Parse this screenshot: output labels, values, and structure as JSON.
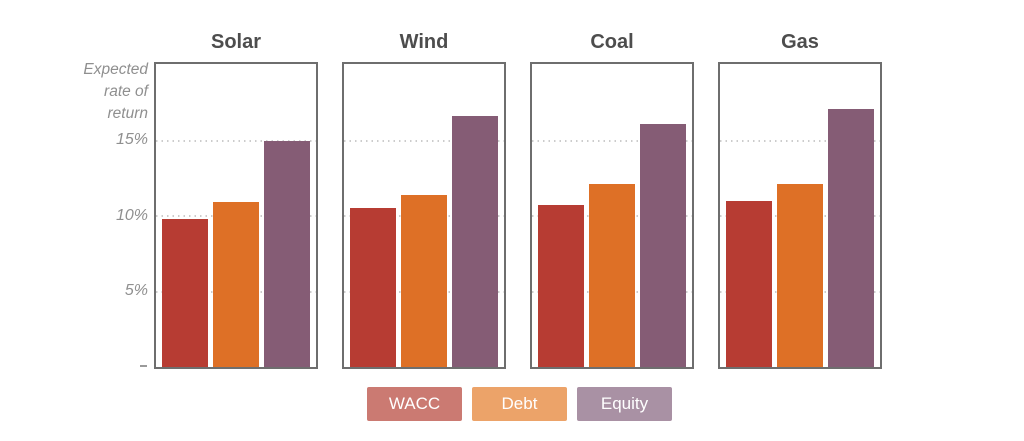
{
  "chart_data": {
    "type": "bar",
    "title": "",
    "categories": [
      "Solar",
      "Wind",
      "Coal",
      "Gas"
    ],
    "series": [
      {
        "name": "WACC",
        "color": "#b73c33",
        "values": [
          9.8,
          10.5,
          10.7,
          11.0
        ]
      },
      {
        "name": "Debt",
        "color": "#de7026",
        "values": [
          10.9,
          11.4,
          12.1,
          12.1
        ]
      },
      {
        "name": "Equity",
        "color": "#855c75",
        "values": [
          15.0,
          16.6,
          16.1,
          17.1
        ]
      }
    ],
    "xlabel": "",
    "ylabel": "Expected rate of return",
    "ylim": [
      0,
      20
    ],
    "y_ticks": [
      {
        "value": 15,
        "label": "15%"
      },
      {
        "value": 10,
        "label": "10%"
      },
      {
        "value": 5,
        "label": "5%"
      }
    ],
    "grid": "horizontal-dotted",
    "legend_position": "bottom"
  },
  "y_axis": {
    "title_lines": [
      "Expected",
      "rate of",
      "return"
    ],
    "ticks": [
      {
        "label": "15%",
        "value": 15
      },
      {
        "label": "10%",
        "value": 10
      },
      {
        "label": "5%",
        "value": 5
      }
    ]
  },
  "panels": [
    {
      "title": "Solar",
      "bars": [
        {
          "series": "WACC",
          "value": 9.8
        },
        {
          "series": "Debt",
          "value": 10.9
        },
        {
          "series": "Equity",
          "value": 15.0
        }
      ]
    },
    {
      "title": "Wind",
      "bars": [
        {
          "series": "WACC",
          "value": 10.5
        },
        {
          "series": "Debt",
          "value": 11.4
        },
        {
          "series": "Equity",
          "value": 16.6
        }
      ]
    },
    {
      "title": "Coal",
      "bars": [
        {
          "series": "WACC",
          "value": 10.7
        },
        {
          "series": "Debt",
          "value": 12.1
        },
        {
          "series": "Equity",
          "value": 16.1
        }
      ]
    },
    {
      "title": "Gas",
      "bars": [
        {
          "series": "WACC",
          "value": 11.0
        },
        {
          "series": "Debt",
          "value": 12.1
        },
        {
          "series": "Equity",
          "value": 17.1
        }
      ]
    }
  ],
  "legend": {
    "items": [
      {
        "label": "WACC",
        "color": "#cb7a72",
        "series_color": "#b73c33"
      },
      {
        "label": "Debt",
        "color": "#eca369",
        "series_color": "#de7026"
      },
      {
        "label": "Equity",
        "color": "#a991a4",
        "series_color": "#855c75"
      }
    ]
  },
  "colors": {
    "bar_wacc": "#b73c33",
    "bar_debt": "#de7026",
    "bar_equity": "#855c75",
    "panel_border": "#6e6e6e",
    "gridline": "#cccccc",
    "title_text": "#4d4d4d",
    "axis_text": "#8f8f8f",
    "background": "#ffffff"
  }
}
